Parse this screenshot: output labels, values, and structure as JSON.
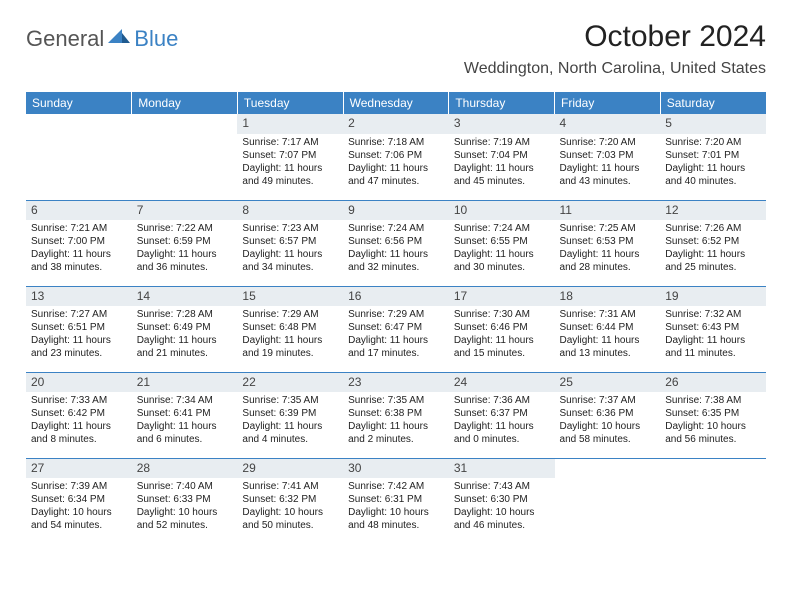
{
  "brand": {
    "part1": "General",
    "part2": "Blue"
  },
  "title": "October 2024",
  "location": "Weddington, North Carolina, United States",
  "colors": {
    "accent": "#3b82c4",
    "header_text": "#ffffff",
    "daynum_bg": "#e8edf1",
    "border": "#3b82c4",
    "body_text": "#222222"
  },
  "day_headers": [
    "Sunday",
    "Monday",
    "Tuesday",
    "Wednesday",
    "Thursday",
    "Friday",
    "Saturday"
  ],
  "weeks": [
    [
      null,
      null,
      {
        "n": "1",
        "sr": "Sunrise: 7:17 AM",
        "ss": "Sunset: 7:07 PM",
        "dl1": "Daylight: 11 hours",
        "dl2": "and 49 minutes."
      },
      {
        "n": "2",
        "sr": "Sunrise: 7:18 AM",
        "ss": "Sunset: 7:06 PM",
        "dl1": "Daylight: 11 hours",
        "dl2": "and 47 minutes."
      },
      {
        "n": "3",
        "sr": "Sunrise: 7:19 AM",
        "ss": "Sunset: 7:04 PM",
        "dl1": "Daylight: 11 hours",
        "dl2": "and 45 minutes."
      },
      {
        "n": "4",
        "sr": "Sunrise: 7:20 AM",
        "ss": "Sunset: 7:03 PM",
        "dl1": "Daylight: 11 hours",
        "dl2": "and 43 minutes."
      },
      {
        "n": "5",
        "sr": "Sunrise: 7:20 AM",
        "ss": "Sunset: 7:01 PM",
        "dl1": "Daylight: 11 hours",
        "dl2": "and 40 minutes."
      }
    ],
    [
      {
        "n": "6",
        "sr": "Sunrise: 7:21 AM",
        "ss": "Sunset: 7:00 PM",
        "dl1": "Daylight: 11 hours",
        "dl2": "and 38 minutes."
      },
      {
        "n": "7",
        "sr": "Sunrise: 7:22 AM",
        "ss": "Sunset: 6:59 PM",
        "dl1": "Daylight: 11 hours",
        "dl2": "and 36 minutes."
      },
      {
        "n": "8",
        "sr": "Sunrise: 7:23 AM",
        "ss": "Sunset: 6:57 PM",
        "dl1": "Daylight: 11 hours",
        "dl2": "and 34 minutes."
      },
      {
        "n": "9",
        "sr": "Sunrise: 7:24 AM",
        "ss": "Sunset: 6:56 PM",
        "dl1": "Daylight: 11 hours",
        "dl2": "and 32 minutes."
      },
      {
        "n": "10",
        "sr": "Sunrise: 7:24 AM",
        "ss": "Sunset: 6:55 PM",
        "dl1": "Daylight: 11 hours",
        "dl2": "and 30 minutes."
      },
      {
        "n": "11",
        "sr": "Sunrise: 7:25 AM",
        "ss": "Sunset: 6:53 PM",
        "dl1": "Daylight: 11 hours",
        "dl2": "and 28 minutes."
      },
      {
        "n": "12",
        "sr": "Sunrise: 7:26 AM",
        "ss": "Sunset: 6:52 PM",
        "dl1": "Daylight: 11 hours",
        "dl2": "and 25 minutes."
      }
    ],
    [
      {
        "n": "13",
        "sr": "Sunrise: 7:27 AM",
        "ss": "Sunset: 6:51 PM",
        "dl1": "Daylight: 11 hours",
        "dl2": "and 23 minutes."
      },
      {
        "n": "14",
        "sr": "Sunrise: 7:28 AM",
        "ss": "Sunset: 6:49 PM",
        "dl1": "Daylight: 11 hours",
        "dl2": "and 21 minutes."
      },
      {
        "n": "15",
        "sr": "Sunrise: 7:29 AM",
        "ss": "Sunset: 6:48 PM",
        "dl1": "Daylight: 11 hours",
        "dl2": "and 19 minutes."
      },
      {
        "n": "16",
        "sr": "Sunrise: 7:29 AM",
        "ss": "Sunset: 6:47 PM",
        "dl1": "Daylight: 11 hours",
        "dl2": "and 17 minutes."
      },
      {
        "n": "17",
        "sr": "Sunrise: 7:30 AM",
        "ss": "Sunset: 6:46 PM",
        "dl1": "Daylight: 11 hours",
        "dl2": "and 15 minutes."
      },
      {
        "n": "18",
        "sr": "Sunrise: 7:31 AM",
        "ss": "Sunset: 6:44 PM",
        "dl1": "Daylight: 11 hours",
        "dl2": "and 13 minutes."
      },
      {
        "n": "19",
        "sr": "Sunrise: 7:32 AM",
        "ss": "Sunset: 6:43 PM",
        "dl1": "Daylight: 11 hours",
        "dl2": "and 11 minutes."
      }
    ],
    [
      {
        "n": "20",
        "sr": "Sunrise: 7:33 AM",
        "ss": "Sunset: 6:42 PM",
        "dl1": "Daylight: 11 hours",
        "dl2": "and 8 minutes."
      },
      {
        "n": "21",
        "sr": "Sunrise: 7:34 AM",
        "ss": "Sunset: 6:41 PM",
        "dl1": "Daylight: 11 hours",
        "dl2": "and 6 minutes."
      },
      {
        "n": "22",
        "sr": "Sunrise: 7:35 AM",
        "ss": "Sunset: 6:39 PM",
        "dl1": "Daylight: 11 hours",
        "dl2": "and 4 minutes."
      },
      {
        "n": "23",
        "sr": "Sunrise: 7:35 AM",
        "ss": "Sunset: 6:38 PM",
        "dl1": "Daylight: 11 hours",
        "dl2": "and 2 minutes."
      },
      {
        "n": "24",
        "sr": "Sunrise: 7:36 AM",
        "ss": "Sunset: 6:37 PM",
        "dl1": "Daylight: 11 hours",
        "dl2": "and 0 minutes."
      },
      {
        "n": "25",
        "sr": "Sunrise: 7:37 AM",
        "ss": "Sunset: 6:36 PM",
        "dl1": "Daylight: 10 hours",
        "dl2": "and 58 minutes."
      },
      {
        "n": "26",
        "sr": "Sunrise: 7:38 AM",
        "ss": "Sunset: 6:35 PM",
        "dl1": "Daylight: 10 hours",
        "dl2": "and 56 minutes."
      }
    ],
    [
      {
        "n": "27",
        "sr": "Sunrise: 7:39 AM",
        "ss": "Sunset: 6:34 PM",
        "dl1": "Daylight: 10 hours",
        "dl2": "and 54 minutes."
      },
      {
        "n": "28",
        "sr": "Sunrise: 7:40 AM",
        "ss": "Sunset: 6:33 PM",
        "dl1": "Daylight: 10 hours",
        "dl2": "and 52 minutes."
      },
      {
        "n": "29",
        "sr": "Sunrise: 7:41 AM",
        "ss": "Sunset: 6:32 PM",
        "dl1": "Daylight: 10 hours",
        "dl2": "and 50 minutes."
      },
      {
        "n": "30",
        "sr": "Sunrise: 7:42 AM",
        "ss": "Sunset: 6:31 PM",
        "dl1": "Daylight: 10 hours",
        "dl2": "and 48 minutes."
      },
      {
        "n": "31",
        "sr": "Sunrise: 7:43 AM",
        "ss": "Sunset: 6:30 PM",
        "dl1": "Daylight: 10 hours",
        "dl2": "and 46 minutes."
      },
      null,
      null
    ]
  ]
}
